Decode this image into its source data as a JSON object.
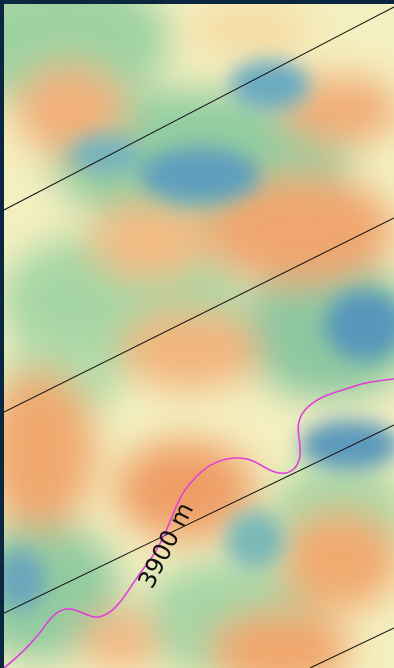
{
  "map": {
    "contour_label": "3900 m",
    "colors": {
      "low": "#f0a268",
      "mid": "#f6f0c2",
      "green": "#8ec89a",
      "high": "#5a9ec0",
      "grid_line": "#111111",
      "contour_line": "#e040d8",
      "frame": "#0b2740"
    }
  }
}
